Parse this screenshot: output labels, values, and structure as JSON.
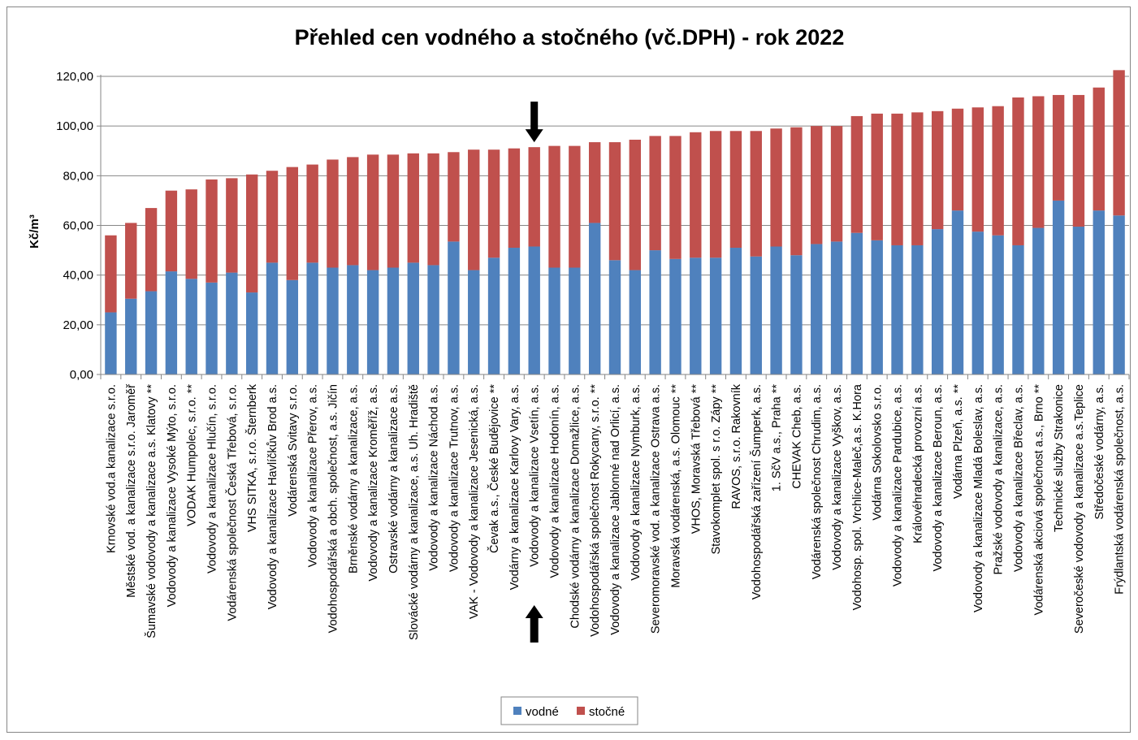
{
  "chart_data": {
    "type": "bar",
    "stacked": true,
    "title": "Přehled cen vodného a stočného (vč.DPH) - rok 2022",
    "ylabel": "Kč/m³",
    "xlabel": "",
    "ylim": [
      0,
      120
    ],
    "yticks": [
      "0,00",
      "20,00",
      "40,00",
      "60,00",
      "80,00",
      "100,00",
      "120,00"
    ],
    "grid": true,
    "legend_position": "bottom",
    "highlight_category": "Vodovody a kanalizace Vsetín, a.s.",
    "categories": [
      "Krnovské vod.a kanalizace s.r.o.",
      "Městské vod. a kanalizace s.r.o. Jaroměř",
      "Šumavské vodovody a kanalizace a.s. Klatovy **",
      "Vodovody a kanalizace Vysoké Mýto, s.r.o.",
      "VODAK Humpolec, s.r.o. **",
      "Vodovody a kanalizace Hlučín, s.r.o.",
      "Vodárenská společnost Česká Třebová, s.r.o.",
      "VHS SITKA, s.r.o. Šternberk",
      "Vodovody a kanalizace Havlíčkův Brod a.s.",
      "Vodárenská Svitavy s.r.o.",
      "Vodovody a kanalizace Přerov, a.s.",
      "Vodohospodářská a obch. společnost, a.s. Jičín",
      "Brněnské vodárny a kanalizace, a.s.",
      "Vodovody a kanalizace Kroměříž, a.s.",
      "Ostravské vodárny a kanalizace a.s.",
      "Slovácké vodárny a kanalizace, a.s. Uh. Hradiště",
      "Vodovody a kanalizace Náchod a.s.",
      "Vodovody a kanalizace  Trutnov, a.s.",
      "VAK - Vodovody a kanalizace Jesenická, a.s.",
      "Čevak a.s., České Budějovice **",
      "Vodárny a kanalizace Karlovy Vary, a.s.",
      "Vodovody a kanalizace Vsetín, a.s.",
      "Vodovody a kanalizace Hodonín, a.s.",
      "Chodské vodárny a kanalizace Domažlice, a.s.",
      "Vodohospodářská společnost Rokycany, s.r.o. **",
      "Vodovody a kanalizace Jablonné nad Orlicí, a.s.",
      "Vodovody a kanalizace Nymburk, a.s.",
      "Severomoravské vod. a kanalizace Ostrava a.s.",
      "Moravská vodárenská, a.s. Olomouc **",
      "VHOS, Moravská Třebová **",
      "Stavokomplet spol. s r.o. Zápy **",
      "RAVOS, s.r.o. Rakovník",
      "Vodohospodářská zařízení Šumperk, a.s.",
      "1. SčV a.s., Praha **",
      "CHEVAK Cheb, a.s.",
      "Vodárenská společnost Chrudim, a.s.",
      "Vodovody a kanalizace  Vyškov, a.s.",
      "Vodohosp. spol. Vrchlice-Maleč,a.s. K.Hora",
      "Vodárna Sokolovsko s.r.o.",
      "Vodovody a kanalizace Pardubice, a.s.",
      "Královéhradecká provozní a.s.",
      "Vodovody a kanalizace Beroun, a.s.",
      "Vodárna Plzeň, a.s. **",
      "Vodovody a kanalizace Mladá Boleslav, a.s.",
      "Pražské vodovody a kanalizace, a.s.",
      "Vodovody a kanalizace Břeclav, a.s.",
      "Vodárenská akciová společnost a.s., Brno **",
      "Technické služby Strakonice",
      "Severočeské vodovody a kanalizace a.s.Teplice",
      "Středočeské vodárny, a.s.",
      "Frýdlantská vodárenská společnost, a.s."
    ],
    "series": [
      {
        "name": "vodné",
        "color": "#4F81BD",
        "values": [
          25,
          30.5,
          33.5,
          41.5,
          38.5,
          37,
          41,
          33,
          45,
          38,
          45,
          43,
          44,
          42,
          43,
          45,
          44,
          53.5,
          42,
          47,
          51,
          51.5,
          43,
          43,
          61,
          46,
          42,
          50,
          46.5,
          47,
          47,
          51,
          47.5,
          51.5,
          48,
          52.5,
          53.5,
          57,
          54,
          52,
          52,
          58.5,
          66,
          57.5,
          56,
          52,
          59,
          70,
          59.5,
          66,
          64
        ]
      },
      {
        "name": "stočné",
        "color": "#C0504D",
        "values": [
          31,
          30.5,
          33.5,
          32.5,
          36,
          41.5,
          38,
          47.5,
          37,
          45.5,
          39.5,
          43.5,
          43.5,
          46.5,
          45.5,
          44,
          45,
          36,
          48.5,
          43.5,
          40,
          40,
          49,
          49,
          32.5,
          47.5,
          52.5,
          46,
          49.5,
          50.5,
          51,
          47,
          50.5,
          47.5,
          51.5,
          47.5,
          46.5,
          47,
          51,
          53,
          53.5,
          47.5,
          41,
          50,
          52,
          59.5,
          53,
          42.5,
          53,
          49.5,
          58.5
        ]
      }
    ],
    "legend": [
      "vodné",
      "stočné"
    ]
  }
}
